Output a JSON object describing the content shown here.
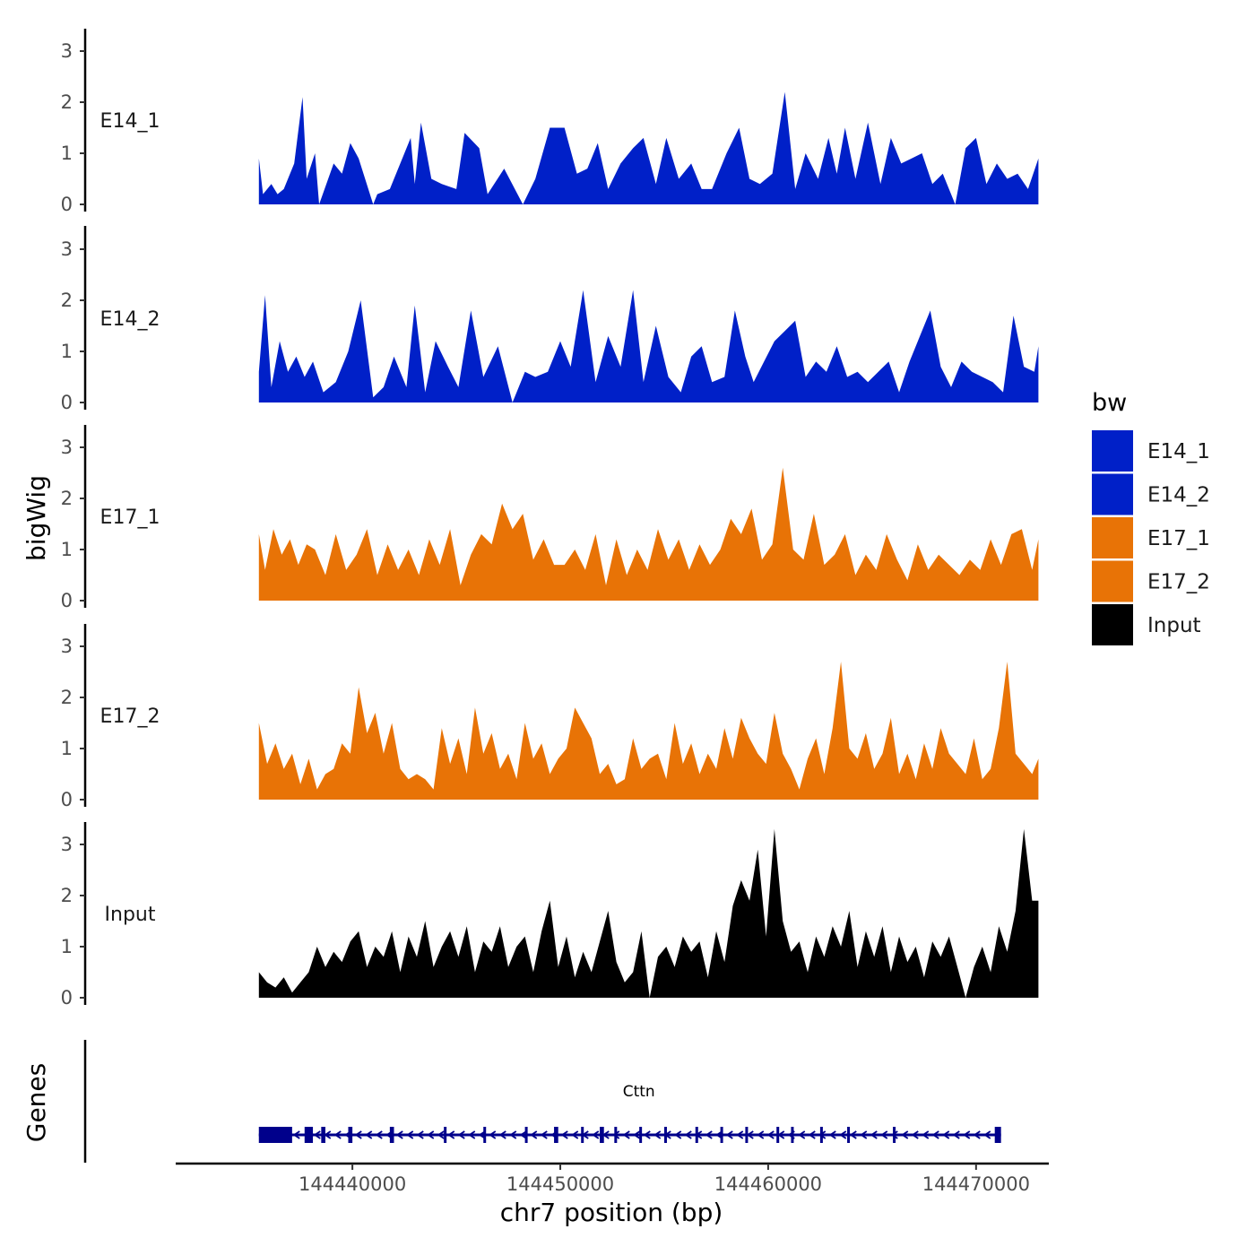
{
  "chart_data": {
    "type": "area",
    "xlabel": "chr7 position (bp)",
    "ylabel": "bigWig",
    "genes_label": "Genes",
    "xlim": [
      144431500,
      144473500
    ],
    "x_ticks": [
      144440000,
      144450000,
      144460000,
      144470000
    ],
    "x_tick_labels": [
      "144440000",
      "144450000",
      "144460000",
      "144470000"
    ],
    "ylim": [
      0,
      3.3
    ],
    "y_ticks": [
      0,
      1,
      2,
      3
    ],
    "y_tick_labels": [
      "0",
      "1",
      "2",
      "3"
    ],
    "legend": {
      "title": "bw",
      "position": "right",
      "entries": [
        {
          "label": "E14_1",
          "color": "#0020C8"
        },
        {
          "label": "E14_2",
          "color": "#0020C8"
        },
        {
          "label": "E17_1",
          "color": "#E87306"
        },
        {
          "label": "E17_2",
          "color": "#E87306"
        },
        {
          "label": "Input",
          "color": "#000000"
        }
      ]
    },
    "series": [
      {
        "name": "E14_1",
        "color": "#0020C8",
        "x": [
          144435500,
          144435700,
          144436100,
          144436400,
          144436700,
          144437200,
          144437600,
          144437800,
          144438200,
          144438400,
          144439100,
          144439500,
          144439900,
          144440300,
          144441000,
          144441200,
          144441800,
          144442400,
          144442800,
          144443000,
          144443300,
          144443800,
          144444300,
          144445000,
          144445400,
          144446100,
          144446500,
          144447300,
          144448200,
          144448800,
          144449500,
          144450200,
          144450800,
          144451300,
          144451800,
          144452300,
          144452900,
          144453500,
          144454000,
          144454600,
          144455100,
          144455700,
          144456300,
          144456800,
          144457300,
          144458000,
          144458600,
          144459100,
          144459600,
          144460200,
          144460800,
          144461300,
          144461800,
          144462400,
          144462900,
          144463300,
          144463700,
          144464200,
          144464800,
          144465400,
          144465900,
          144466400,
          144466900,
          144467400,
          144467900,
          144468400,
          144469000,
          144469500,
          144470000,
          144470500,
          144471000,
          144471500,
          144472000,
          144472500,
          144473000
        ],
        "values": [
          0.9,
          0.2,
          0.4,
          0.2,
          0.3,
          0.8,
          2.1,
          0.5,
          1.0,
          0,
          0.8,
          0.6,
          1.2,
          0.9,
          0,
          0.2,
          0.3,
          0.9,
          1.3,
          0.4,
          1.6,
          0.5,
          0.4,
          0.3,
          1.4,
          1.1,
          0.2,
          0.7,
          0,
          0.5,
          1.5,
          1.5,
          0.6,
          0.7,
          1.2,
          0.3,
          0.8,
          1.1,
          1.3,
          0.4,
          1.3,
          0.5,
          0.8,
          0.3,
          0.3,
          1.0,
          1.5,
          0.5,
          0.4,
          0.6,
          2.2,
          0.3,
          1.0,
          0.5,
          1.3,
          0.6,
          1.5,
          0.5,
          1.6,
          0.4,
          1.3,
          0.8,
          0.9,
          1.0,
          0.4,
          0.6,
          0,
          1.1,
          1.3,
          0.4,
          0.8,
          0.5,
          0.6,
          0.3,
          0.9
        ]
      },
      {
        "name": "E14_2",
        "color": "#0020C8",
        "x": [
          144435500,
          144435800,
          144436100,
          144436500,
          144436900,
          144437300,
          144437700,
          144438100,
          144438600,
          144439200,
          144439800,
          144440400,
          144441000,
          144441500,
          144442000,
          144442600,
          144443000,
          144443500,
          144444000,
          144444600,
          144445100,
          144445700,
          144446300,
          144447000,
          144447700,
          144448300,
          144448800,
          144449400,
          144450000,
          144450500,
          144451100,
          144451700,
          144452300,
          144452900,
          144453500,
          144454000,
          144454600,
          144455200,
          144455800,
          144456300,
          144456800,
          144457300,
          144457900,
          144458400,
          144458900,
          144459300,
          144459800,
          144460300,
          144460800,
          144461300,
          144461800,
          144462300,
          144462800,
          144463300,
          144463800,
          144464300,
          144464800,
          144465300,
          144465800,
          144466300,
          144466800,
          144467300,
          144467800,
          144468300,
          144468800,
          144469300,
          144469800,
          144470300,
          144470800,
          144471300,
          144471800,
          144472300,
          144472800,
          144473000
        ],
        "values": [
          0.6,
          2.1,
          0.3,
          1.2,
          0.6,
          0.9,
          0.5,
          0.8,
          0.2,
          0.4,
          1.0,
          2.0,
          0.1,
          0.3,
          0.9,
          0.3,
          1.9,
          0.2,
          1.2,
          0.7,
          0.3,
          1.8,
          0.5,
          1.1,
          0,
          0.6,
          0.5,
          0.6,
          1.2,
          0.7,
          2.2,
          0.4,
          1.3,
          0.7,
          2.2,
          0.4,
          1.5,
          0.5,
          0.2,
          0.9,
          1.1,
          0.4,
          0.5,
          1.8,
          0.9,
          0.4,
          0.8,
          1.2,
          1.4,
          1.6,
          0.5,
          0.8,
          0.6,
          1.1,
          0.5,
          0.6,
          0.4,
          0.6,
          0.8,
          0.2,
          0.8,
          1.3,
          1.8,
          0.7,
          0.3,
          0.8,
          0.6,
          0.5,
          0.4,
          0.2,
          1.7,
          0.7,
          0.6,
          1.1
        ]
      },
      {
        "name": "E17_1",
        "color": "#E87306",
        "x": [
          144435500,
          144435800,
          144436200,
          144436600,
          144437000,
          144437400,
          144437800,
          144438200,
          144438700,
          144439200,
          144439700,
          144440200,
          144440700,
          144441200,
          144441700,
          144442200,
          144442700,
          144443200,
          144443700,
          144444200,
          144444700,
          144445200,
          144445700,
          144446200,
          144446700,
          144447200,
          144447700,
          144448200,
          144448700,
          144449200,
          144449700,
          144450200,
          144450700,
          144451200,
          144451700,
          144452200,
          144452700,
          144453200,
          144453700,
          144454200,
          144454700,
          144455200,
          144455700,
          144456200,
          144456700,
          144457200,
          144457700,
          144458200,
          144458700,
          144459200,
          144459700,
          144460200,
          144460700,
          144461200,
          144461700,
          144462200,
          144462700,
          144463200,
          144463700,
          144464200,
          144464700,
          144465200,
          144465700,
          144466200,
          144466700,
          144467200,
          144467700,
          144468200,
          144468700,
          144469200,
          144469700,
          144470200,
          144470700,
          144471200,
          144471700,
          144472200,
          144472700,
          144473000
        ],
        "values": [
          1.3,
          0.6,
          1.4,
          0.9,
          1.2,
          0.7,
          1.1,
          1.0,
          0.5,
          1.3,
          0.6,
          0.9,
          1.4,
          0.5,
          1.1,
          0.6,
          1.0,
          0.5,
          1.2,
          0.7,
          1.4,
          0.3,
          0.9,
          1.3,
          1.1,
          1.9,
          1.4,
          1.7,
          0.8,
          1.2,
          0.7,
          0.7,
          1.0,
          0.6,
          1.3,
          0.3,
          1.2,
          0.5,
          1.0,
          0.6,
          1.4,
          0.8,
          1.2,
          0.6,
          1.1,
          0.7,
          1.0,
          1.6,
          1.3,
          1.8,
          0.8,
          1.1,
          2.6,
          1.0,
          0.8,
          1.7,
          0.7,
          0.9,
          1.3,
          0.5,
          0.9,
          0.6,
          1.3,
          0.8,
          0.4,
          1.1,
          0.6,
          0.9,
          0.7,
          0.5,
          0.8,
          0.6,
          1.2,
          0.7,
          1.3,
          1.4,
          0.6,
          1.2
        ]
      },
      {
        "name": "E17_2",
        "color": "#E87306",
        "x": [
          144435500,
          144435900,
          144436300,
          144436700,
          144437100,
          144437500,
          144437900,
          144438300,
          144438700,
          144439100,
          144439500,
          144439900,
          144440300,
          144440700,
          144441100,
          144441500,
          144441900,
          144442300,
          144442700,
          144443100,
          144443500,
          144443900,
          144444300,
          144444700,
          144445100,
          144445500,
          144445900,
          144446300,
          144446700,
          144447100,
          144447500,
          144447900,
          144448300,
          144448700,
          144449100,
          144449500,
          144449900,
          144450300,
          144450700,
          144451100,
          144451500,
          144451900,
          144452300,
          144452700,
          144453100,
          144453500,
          144453900,
          144454300,
          144454700,
          144455100,
          144455500,
          144455900,
          144456300,
          144456700,
          144457100,
          144457500,
          144457900,
          144458300,
          144458700,
          144459100,
          144459500,
          144459900,
          144460300,
          144460700,
          144461100,
          144461500,
          144461900,
          144462300,
          144462700,
          144463100,
          144463500,
          144463900,
          144464300,
          144464700,
          144465100,
          144465500,
          144465900,
          144466300,
          144466700,
          144467100,
          144467500,
          144467900,
          144468300,
          144468700,
          144469100,
          144469500,
          144469900,
          144470300,
          144470700,
          144471100,
          144471500,
          144471900,
          144472300,
          144472700,
          144473000
        ],
        "values": [
          1.5,
          0.7,
          1.1,
          0.6,
          0.9,
          0.3,
          0.8,
          0.2,
          0.5,
          0.6,
          1.1,
          0.9,
          2.2,
          1.3,
          1.7,
          0.9,
          1.5,
          0.6,
          0.4,
          0.5,
          0.4,
          0.2,
          1.4,
          0.7,
          1.2,
          0.5,
          1.8,
          0.9,
          1.3,
          0.6,
          0.9,
          0.4,
          1.5,
          0.8,
          1.1,
          0.5,
          0.8,
          1.0,
          1.8,
          1.5,
          1.2,
          0.5,
          0.7,
          0.3,
          0.4,
          1.2,
          0.6,
          0.8,
          0.9,
          0.4,
          1.5,
          0.7,
          1.1,
          0.5,
          0.9,
          0.6,
          1.4,
          0.8,
          1.6,
          1.2,
          0.9,
          0.7,
          1.7,
          0.9,
          0.6,
          0.2,
          0.8,
          1.2,
          0.5,
          1.4,
          2.7,
          1.0,
          0.8,
          1.3,
          0.6,
          0.9,
          1.6,
          0.5,
          0.9,
          0.4,
          1.1,
          0.6,
          1.4,
          0.9,
          0.7,
          0.5,
          1.2,
          0.4,
          0.6,
          1.4,
          2.7,
          0.9,
          0.7,
          0.5,
          0.8
        ]
      },
      {
        "name": "Input",
        "color": "#000000",
        "x": [
          144435500,
          144435900,
          144436300,
          144436700,
          144437100,
          144437500,
          144437900,
          144438300,
          144438700,
          144439100,
          144439500,
          144439900,
          144440300,
          144440700,
          144441100,
          144441500,
          144441900,
          144442300,
          144442700,
          144443100,
          144443500,
          144443900,
          144444300,
          144444700,
          144445100,
          144445500,
          144445900,
          144446300,
          144446700,
          144447100,
          144447500,
          144447900,
          144448300,
          144448700,
          144449100,
          144449500,
          144449900,
          144450300,
          144450700,
          144451100,
          144451500,
          144451900,
          144452300,
          144452700,
          144453100,
          144453500,
          144453900,
          144454300,
          144454700,
          144455100,
          144455500,
          144455900,
          144456300,
          144456700,
          144457100,
          144457500,
          144457900,
          144458300,
          144458700,
          144459100,
          144459500,
          144459900,
          144460300,
          144460700,
          144461100,
          144461500,
          144461900,
          144462300,
          144462700,
          144463100,
          144463500,
          144463900,
          144464300,
          144464700,
          144465100,
          144465500,
          144465900,
          144466300,
          144466700,
          144467100,
          144467500,
          144467900,
          144468300,
          144468700,
          144469100,
          144469500,
          144469900,
          144470300,
          144470700,
          144471100,
          144471500,
          144471900,
          144472300,
          144472700,
          144473000
        ],
        "values": [
          0.5,
          0.3,
          0.2,
          0.4,
          0.1,
          0.3,
          0.5,
          1.0,
          0.6,
          0.9,
          0.7,
          1.1,
          1.3,
          0.6,
          1.0,
          0.8,
          1.3,
          0.5,
          1.2,
          0.8,
          1.5,
          0.6,
          1.0,
          1.3,
          0.8,
          1.4,
          0.5,
          1.1,
          0.9,
          1.4,
          0.6,
          1.0,
          1.2,
          0.5,
          1.3,
          1.9,
          0.6,
          1.2,
          0.4,
          0.9,
          0.5,
          1.1,
          1.7,
          0.7,
          0.3,
          0.5,
          1.3,
          0.0,
          0.8,
          1.0,
          0.6,
          1.2,
          0.9,
          1.1,
          0.4,
          1.3,
          0.7,
          1.8,
          2.3,
          1.9,
          2.9,
          1.2,
          3.3,
          1.5,
          0.9,
          1.1,
          0.5,
          1.2,
          0.8,
          1.4,
          1.0,
          1.7,
          0.6,
          1.3,
          0.8,
          1.4,
          0.5,
          1.2,
          0.7,
          1.0,
          0.4,
          1.1,
          0.8,
          1.2,
          0.6,
          0.0,
          0.6,
          1.0,
          0.5,
          1.4,
          0.9,
          1.7,
          3.3,
          1.9,
          1.9
        ]
      }
    ],
    "genes": [
      {
        "name": "Cttn",
        "strand": "-",
        "start": 144435500,
        "end": 144471200,
        "exons": [
          [
            144435500,
            144437100
          ],
          [
            144437700,
            144438100
          ],
          [
            144438500,
            144438700
          ],
          [
            144439800,
            144440000
          ],
          [
            144441800,
            144442000
          ],
          [
            144444400,
            144444500
          ],
          [
            144446300,
            144446400
          ],
          [
            144448300,
            144448400
          ],
          [
            144449700,
            144449900
          ],
          [
            144451000,
            144451100
          ],
          [
            144451900,
            144452100
          ],
          [
            144452600,
            144452700
          ],
          [
            144453800,
            144453900
          ],
          [
            144455000,
            144455100
          ],
          [
            144456500,
            144456600
          ],
          [
            144457700,
            144457800
          ],
          [
            144458900,
            144459000
          ],
          [
            144460400,
            144460500
          ],
          [
            144461100,
            144461200
          ],
          [
            144462500,
            144462600
          ],
          [
            144463800,
            144463900
          ],
          [
            144466000,
            144466100
          ],
          [
            144470900,
            144471200
          ]
        ]
      }
    ]
  }
}
